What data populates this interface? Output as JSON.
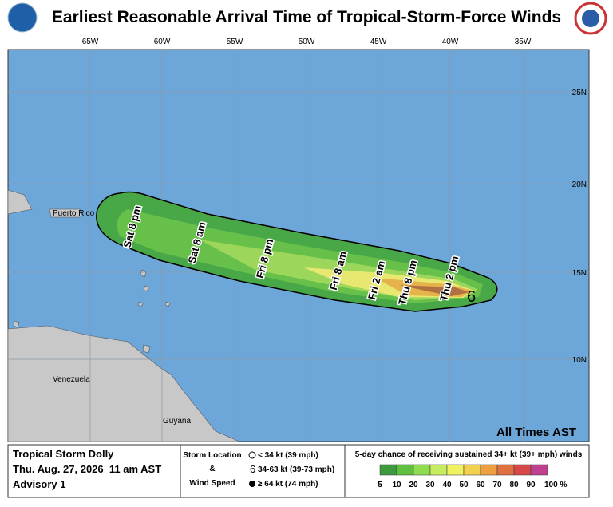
{
  "header": {
    "title": "Earliest Reasonable Arrival Time of Tropical-Storm-Force Winds"
  },
  "map": {
    "lon_labels": [
      "65W",
      "60W",
      "55W",
      "50W",
      "45W",
      "40W",
      "35W"
    ],
    "lat_labels": [
      "25N",
      "20N",
      "15N",
      "10N"
    ],
    "place_labels": [
      "Puerto Rico",
      "Venezuela",
      "Guyana"
    ],
    "time_labels": [
      "Sat 8 pm",
      "Sat 8 am",
      "Fri 8 pm",
      "Fri 8 am",
      "Fri 2 am",
      "Thu 8 pm",
      "Thu 2 pm"
    ],
    "times_note": "All Times AST"
  },
  "footer": {
    "storm_name": "Tropical Storm Dolly",
    "date": "Thu. Aug. 27, 2026  11 am AST",
    "advisory": "Advisory 1",
    "legend_title": [
      "Storm Location",
      "&",
      "Wind Speed"
    ],
    "symbols": [
      "< 34 kt (39 mph)",
      "34-63 kt (39-73 mph)",
      "≥ 64 kt (74 mph)"
    ],
    "probability_title": "5-day chance of receiving sustained 34+ kt (39+ mph) winds",
    "scale_labels": [
      "5",
      "10",
      "20",
      "30",
      "40",
      "50",
      "60",
      "70",
      "80",
      "90",
      "100 %"
    ],
    "scale_colors": [
      "#3f9a3f",
      "#5fbf3f",
      "#8fdc4f",
      "#c8ec5f",
      "#f0f060",
      "#f2d050",
      "#eea040",
      "#e07040",
      "#d84848",
      "#c04090",
      "#b050c8"
    ]
  }
}
